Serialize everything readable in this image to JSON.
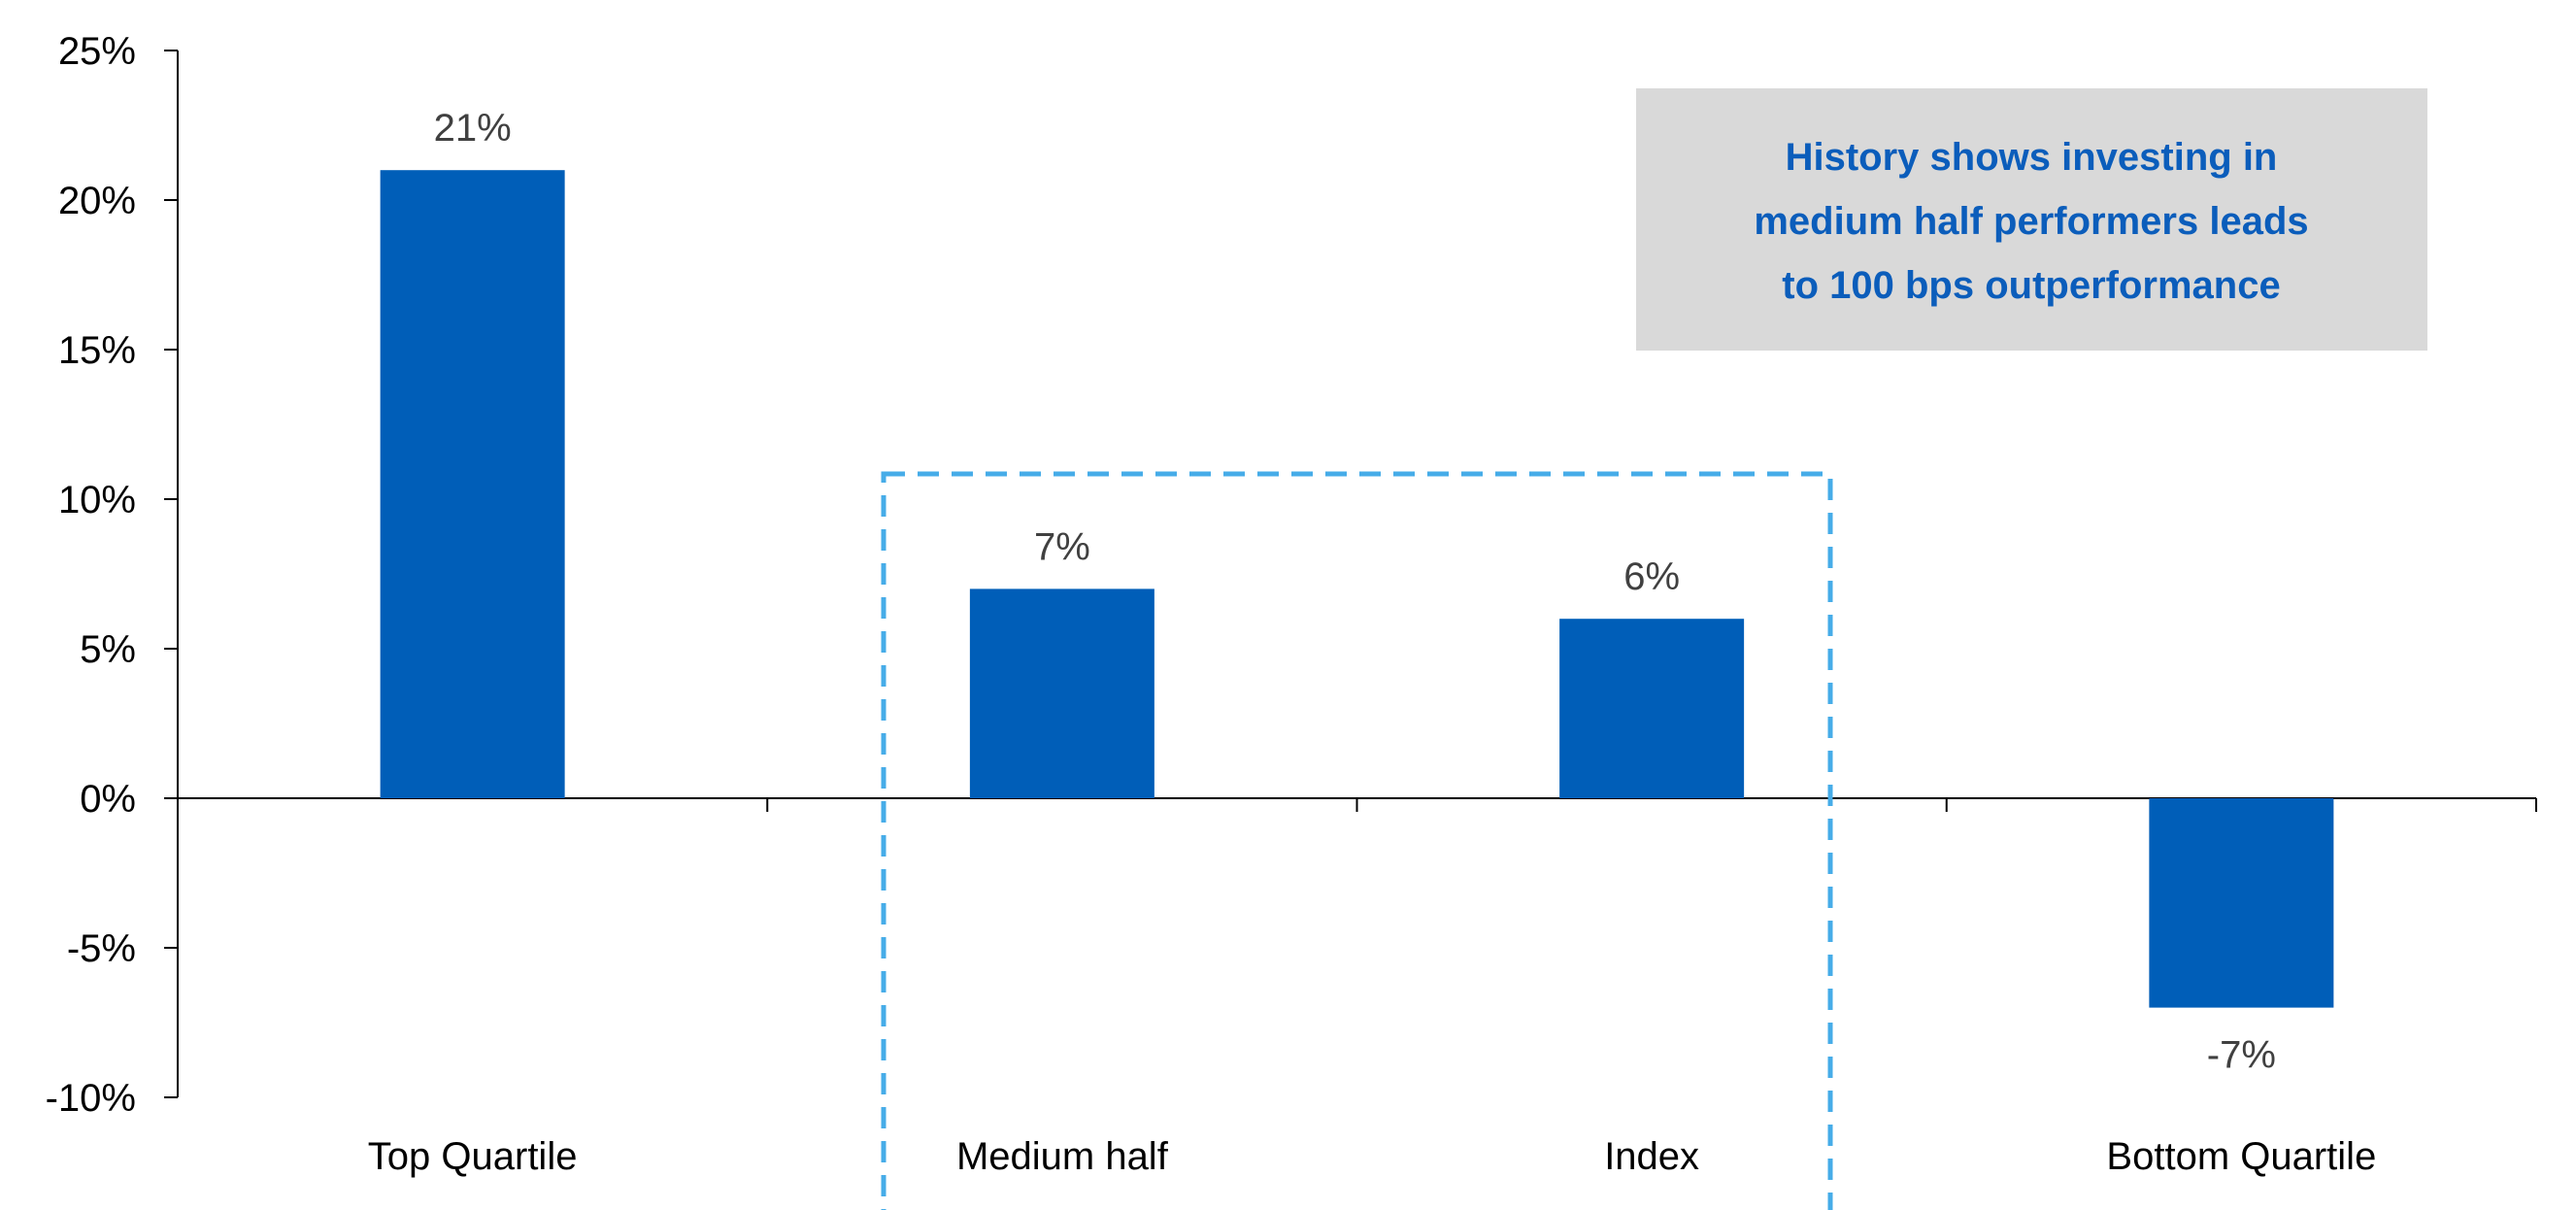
{
  "chart_data": {
    "type": "bar",
    "categories": [
      "Top Quartile",
      "Medium half",
      "Index",
      "Bottom Quartile"
    ],
    "values": [
      21,
      7,
      6,
      -7
    ],
    "data_labels": [
      "21%",
      "7%",
      "6%",
      "-7%"
    ],
    "ylim": [
      -10,
      25
    ],
    "yticks": [
      25,
      20,
      15,
      10,
      5,
      0,
      -5,
      -10
    ],
    "ytick_labels": [
      "25%",
      "20%",
      "15%",
      "10%",
      "5%",
      "0%",
      "-5%",
      "-10%"
    ],
    "grid": false,
    "bar_color": "#005EB8",
    "highlight_categories": [
      "Medium half",
      "Index"
    ],
    "highlight_color": "#46ACE8",
    "annotation": {
      "lines": [
        "History shows investing in",
        "medium half performers leads",
        "to 100 bps outperformance"
      ],
      "text_color": "#0B5DBB",
      "background": "#D9D9D9"
    }
  }
}
